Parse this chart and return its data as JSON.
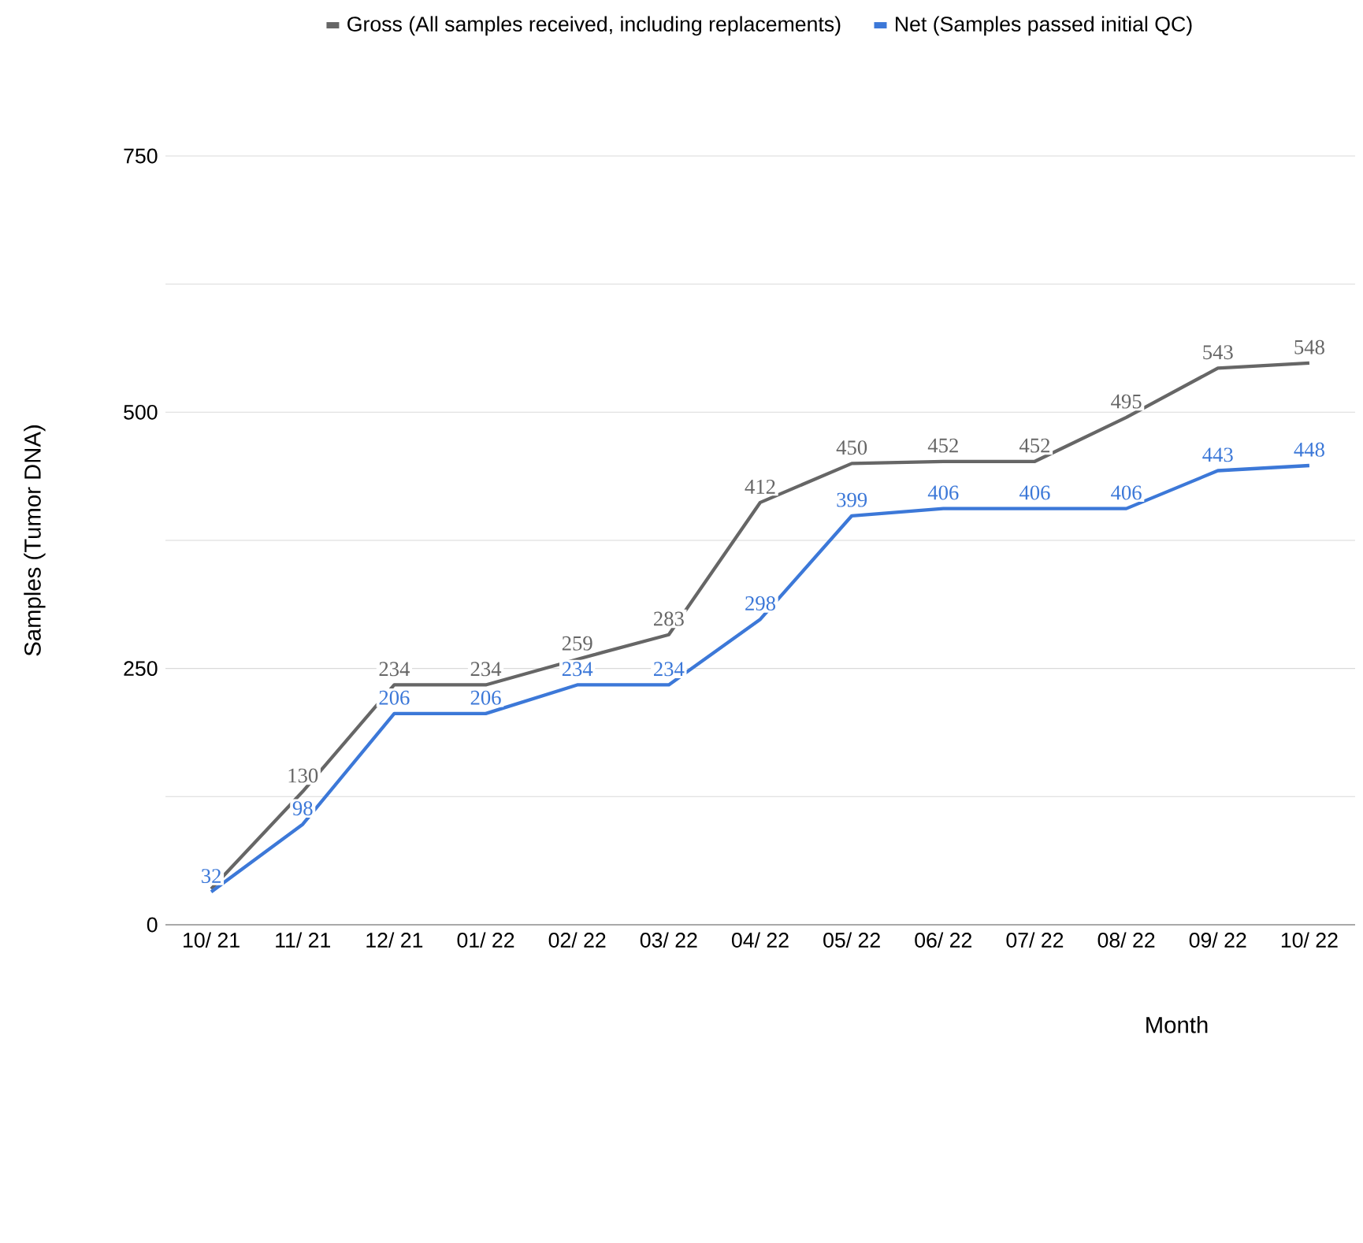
{
  "chart_data": {
    "type": "line",
    "xlabel": "Month",
    "ylabel": "Samples (Tumor DNA)",
    "categories": [
      "10/ 21",
      "11/ 21",
      "12/ 21",
      "01/ 22",
      "02/ 22",
      "03/ 22",
      "04/ 22",
      "05/ 22",
      "06/ 22",
      "07/ 22",
      "08/ 22",
      "09/ 22",
      "10/ 22"
    ],
    "series": [
      {
        "name": "Gross (All samples received, including replacements)",
        "color": "#666666",
        "values": [
          35,
          130,
          234,
          234,
          259,
          283,
          412,
          450,
          452,
          452,
          495,
          543,
          548
        ],
        "value_labels": [
          null,
          "130",
          "234",
          "234",
          "259",
          "283",
          "412",
          "450",
          "452",
          "452",
          "495",
          "543",
          "548"
        ]
      },
      {
        "name": "Net (Samples passed initial QC)",
        "color": "#3c78d8",
        "values": [
          32,
          98,
          206,
          206,
          234,
          234,
          298,
          399,
          406,
          406,
          406,
          443,
          448
        ],
        "value_labels": [
          "32",
          "98",
          "206",
          "206",
          "234",
          "234",
          "298",
          "399",
          "406",
          "406",
          "406",
          "443",
          "448"
        ]
      }
    ],
    "ylim": [
      0,
      750
    ],
    "yticks": [
      0,
      {
        "value": 125,
        "label": null
      },
      250,
      {
        "value": 375,
        "label": null
      },
      500,
      {
        "value": 625,
        "label": null
      },
      750
    ],
    "grid": "y",
    "legend": "top"
  }
}
